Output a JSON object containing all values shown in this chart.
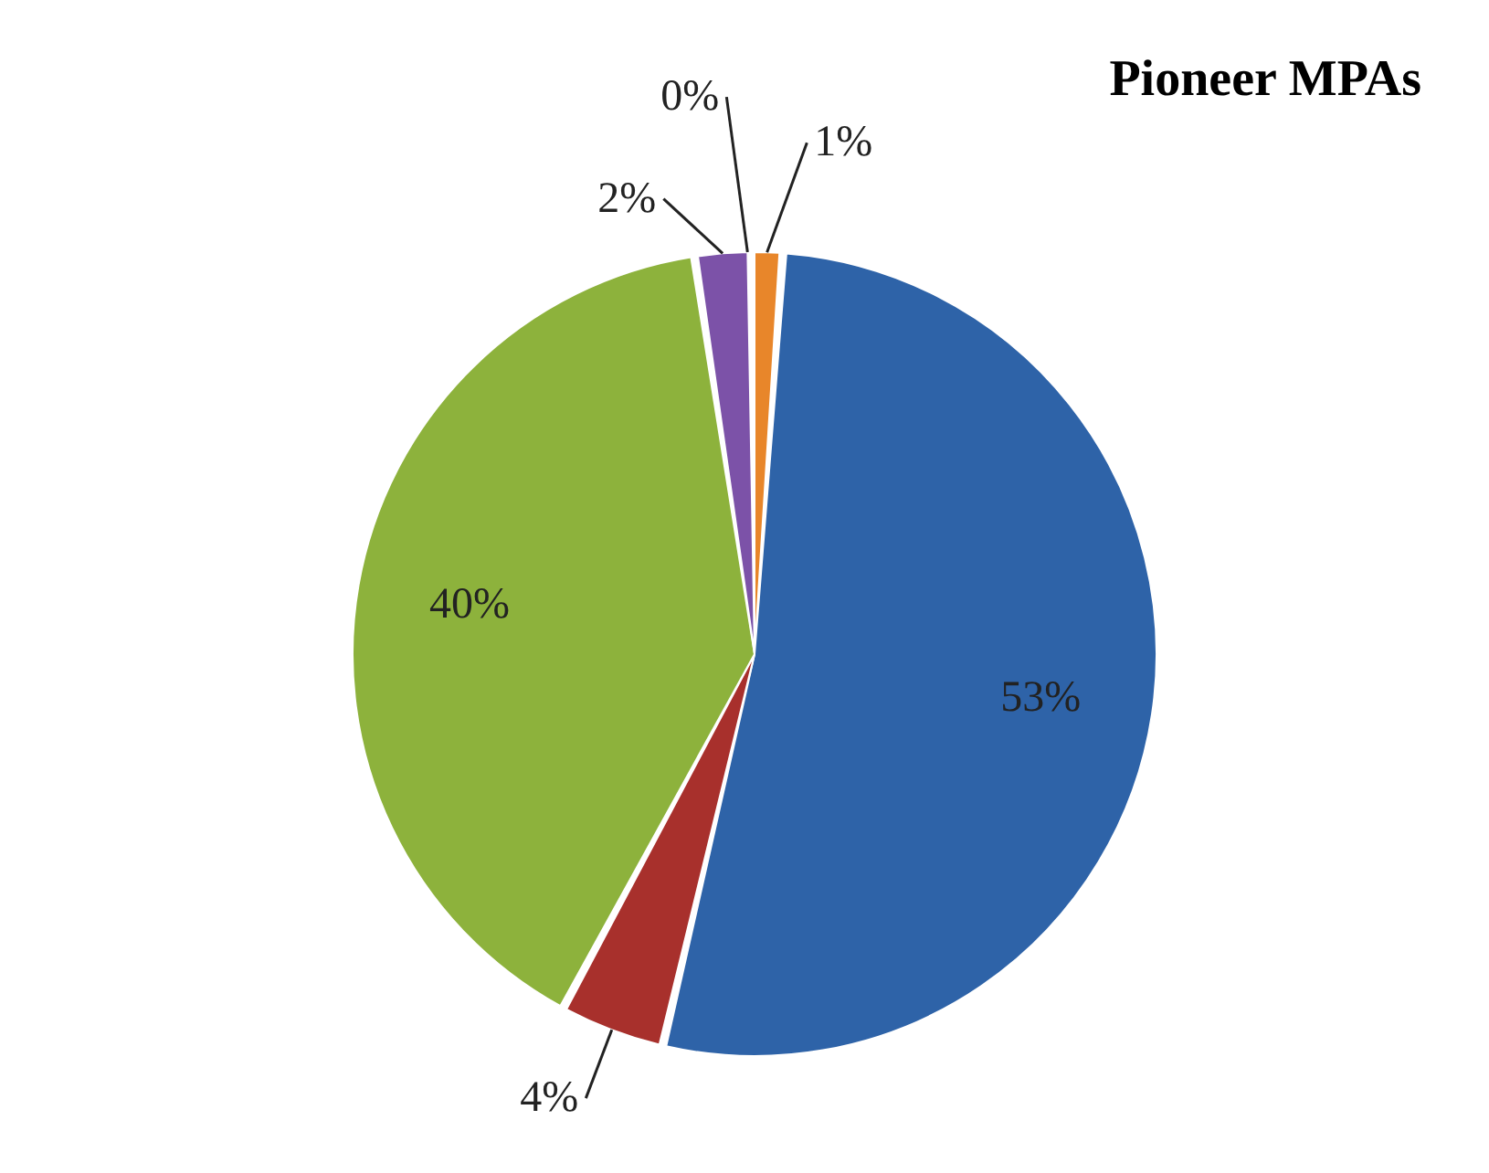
{
  "chart_data": {
    "type": "pie",
    "title": "Pioneer MPAs",
    "categories": [
      null,
      null,
      null,
      null,
      null,
      null
    ],
    "values": [
      1,
      53,
      4,
      40,
      2,
      0
    ],
    "colors": [
      "#e8862a",
      "#2e63a8",
      "#a8302c",
      "#8db23c",
      "#7c52a8",
      "#2a8c8c"
    ],
    "value_labels": [
      "1%",
      "53%",
      "4%",
      "40%",
      "2%",
      "0%"
    ]
  }
}
